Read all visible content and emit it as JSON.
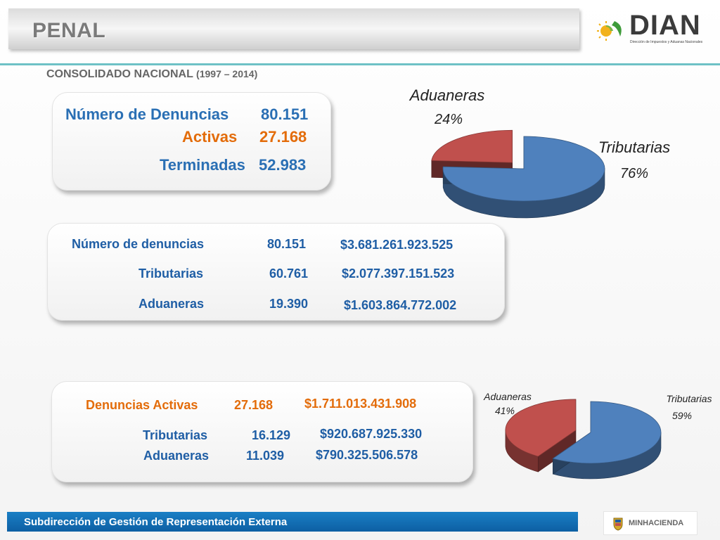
{
  "header": {
    "title": "PENAL",
    "subtitle": "CONSOLIDADO NACIONAL",
    "years": "(1997 – 2014)"
  },
  "logo": {
    "name": "DIAN",
    "registered": "®",
    "tagline": "Dirección de Impuestos y Aduanas Nacionales"
  },
  "summary": {
    "total_label": "Número  de Denuncias",
    "total_value": "80.151",
    "active_label": "Activas",
    "active_value": "27.168",
    "finished_label": "Terminadas",
    "finished_value": "52.983"
  },
  "totals_table": {
    "rows": [
      {
        "label": "Número de denuncias",
        "count": "80.151",
        "amount": "$3.681.261.923.525"
      },
      {
        "label": "Tributarias",
        "count": "60.761",
        "amount": "$2.077.397.151.523"
      },
      {
        "label": "Aduaneras",
        "count": "19.390",
        "amount": "$1.603.864.772.002"
      }
    ]
  },
  "active_table": {
    "rows": [
      {
        "label": "Denuncias Activas",
        "count": "27.168",
        "amount": "$1.711.013.431.908"
      },
      {
        "label": "Tributarias",
        "count": "16.129",
        "amount": "$920.687.925.330"
      },
      {
        "label": "Aduaneras",
        "count": "11.039",
        "amount": "$790.325.506.578"
      }
    ]
  },
  "chart_data": [
    {
      "type": "pie",
      "title": "",
      "categories": [
        "Aduaneras",
        "Tributarias"
      ],
      "values": [
        24,
        76
      ],
      "labels": [
        "24%",
        "76%"
      ],
      "colors": [
        "#c0504d",
        "#4f81bd"
      ]
    },
    {
      "type": "pie",
      "title": "",
      "categories": [
        "Aduaneras",
        "Tributarias"
      ],
      "values": [
        41,
        59
      ],
      "labels": [
        "41%",
        "59%"
      ],
      "colors": [
        "#c0504d",
        "#4f81bd"
      ]
    }
  ],
  "footer": {
    "text": "Subdirección de Gestión de Representación Externa",
    "ministry": "MINHACIENDA"
  }
}
